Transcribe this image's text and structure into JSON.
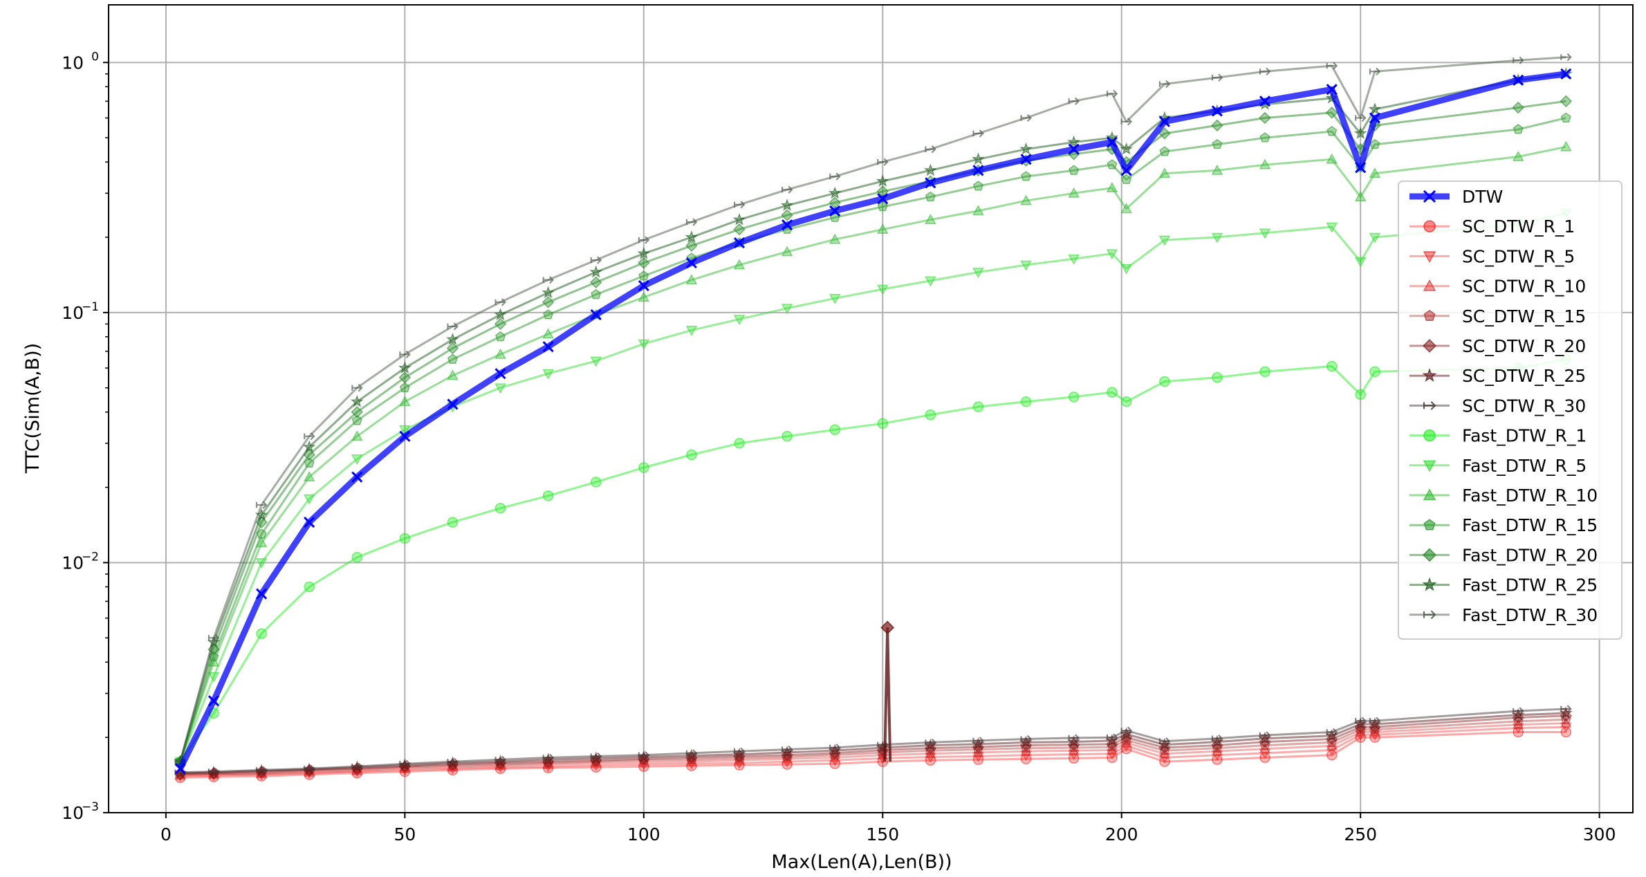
{
  "chart_data": {
    "type": "line",
    "title": "",
    "xlabel": "Max(Len(A),Len(B))",
    "ylabel": "TTC(Sim(A,B))",
    "xlim": [
      -12,
      307
    ],
    "ylim": [
      0.001,
      1.7
    ],
    "yscale": "log",
    "grid": true,
    "legend": "right",
    "x_ticks": [
      0,
      50,
      100,
      150,
      200,
      250,
      300
    ],
    "y_ticks": [
      {
        "value": 0.001,
        "base": "10",
        "exp": "−3"
      },
      {
        "value": 0.01,
        "base": "10",
        "exp": "−2"
      },
      {
        "value": 0.1,
        "base": "10",
        "exp": "−1"
      },
      {
        "value": 1,
        "base": "10",
        "exp": "0"
      }
    ],
    "x": [
      3,
      10,
      20,
      30,
      40,
      50,
      60,
      70,
      80,
      90,
      100,
      110,
      120,
      130,
      140,
      150,
      160,
      170,
      180,
      190,
      198,
      201,
      209,
      220,
      230,
      244,
      250,
      253,
      283,
      293
    ],
    "series": [
      {
        "name": "DTW",
        "color": "#0000ff",
        "marker": "x",
        "width": 9,
        "alpha": 0.75,
        "values": [
          0.0015,
          0.0028,
          0.0075,
          0.0145,
          0.022,
          0.032,
          0.043,
          0.057,
          0.073,
          0.098,
          0.128,
          0.158,
          0.19,
          0.224,
          0.255,
          0.285,
          0.33,
          0.37,
          0.41,
          0.45,
          0.48,
          0.37,
          0.58,
          0.64,
          0.7,
          0.78,
          0.38,
          0.6,
          0.85,
          0.9
        ]
      },
      {
        "name": "SC_DTW_R_1",
        "color": "#ff0000",
        "marker": "o",
        "width": 3,
        "alpha": 0.35,
        "values": [
          0.00138,
          0.00139,
          0.0014,
          0.00142,
          0.00144,
          0.00146,
          0.00148,
          0.0015,
          0.00151,
          0.00152,
          0.00153,
          0.00154,
          0.00155,
          0.00156,
          0.00157,
          0.0016,
          0.00162,
          0.00163,
          0.00164,
          0.00165,
          0.00166,
          0.0018,
          0.0016,
          0.00163,
          0.00166,
          0.0017,
          0.002,
          0.002,
          0.0021,
          0.0021
        ]
      },
      {
        "name": "SC_DTW_R_5",
        "color": "#ee1111",
        "marker": "v",
        "width": 3,
        "alpha": 0.35,
        "values": [
          0.0014,
          0.00141,
          0.00142,
          0.00144,
          0.00146,
          0.00148,
          0.0015,
          0.00152,
          0.00153,
          0.00155,
          0.00156,
          0.00157,
          0.00158,
          0.0016,
          0.00162,
          0.00165,
          0.00167,
          0.00168,
          0.0017,
          0.00171,
          0.00172,
          0.00185,
          0.00166,
          0.0017,
          0.00173,
          0.00178,
          0.00205,
          0.00205,
          0.00218,
          0.0022
        ]
      },
      {
        "name": "SC_DTW_R_10",
        "color": "#d82020",
        "marker": "^",
        "width": 3,
        "alpha": 0.35,
        "values": [
          0.00141,
          0.00142,
          0.00143,
          0.00145,
          0.00147,
          0.0015,
          0.00152,
          0.00154,
          0.00156,
          0.00158,
          0.00159,
          0.0016,
          0.00162,
          0.00164,
          0.00166,
          0.0017,
          0.00172,
          0.00174,
          0.00176,
          0.00177,
          0.00178,
          0.0019,
          0.00172,
          0.00176,
          0.0018,
          0.00185,
          0.0021,
          0.0021,
          0.00225,
          0.00228
        ]
      },
      {
        "name": "SC_DTW_R_15",
        "color": "#b02020",
        "marker": "p",
        "width": 3,
        "alpha": 0.4,
        "values": [
          0.00142,
          0.00143,
          0.00144,
          0.00147,
          0.00149,
          0.00152,
          0.00154,
          0.00156,
          0.00158,
          0.0016,
          0.00162,
          0.00163,
          0.00165,
          0.00167,
          0.0017,
          0.00174,
          0.00177,
          0.00179,
          0.00181,
          0.00182,
          0.00183,
          0.00195,
          0.00177,
          0.00181,
          0.00186,
          0.00191,
          0.00215,
          0.00215,
          0.00232,
          0.00236
        ]
      },
      {
        "name": "SC_DTW_R_20",
        "color": "#801515",
        "marker": "D",
        "width": 3,
        "alpha": 0.45,
        "values": [
          0.00143,
          0.00144,
          0.00146,
          0.00148,
          0.0015,
          0.00153,
          0.00156,
          0.00158,
          0.0016,
          0.00162,
          0.00164,
          0.00166,
          0.00168,
          0.0017,
          0.00173,
          0.00178,
          0.00181,
          0.00183,
          0.00186,
          0.00187,
          0.00188,
          0.002,
          0.00182,
          0.00186,
          0.00192,
          0.00197,
          0.0022,
          0.0022,
          0.0024,
          0.00244
        ]
      },
      {
        "name": "SC_DTW_R_25",
        "color": "#5a1a1a",
        "marker": "*",
        "width": 3,
        "alpha": 0.5,
        "values": [
          0.00144,
          0.00145,
          0.00147,
          0.00149,
          0.00152,
          0.00155,
          0.00158,
          0.0016,
          0.00163,
          0.00165,
          0.00167,
          0.00169,
          0.00171,
          0.00174,
          0.00177,
          0.00182,
          0.00186,
          0.00188,
          0.00191,
          0.00192,
          0.00194,
          0.00206,
          0.00187,
          0.00192,
          0.00198,
          0.00203,
          0.00226,
          0.00226,
          0.00246,
          0.0025
        ]
      },
      {
        "name": "SC_DTW_R_30",
        "color": "#4a3a3a",
        "marker": ">",
        "width": 3,
        "alpha": 0.5,
        "values": [
          0.00145,
          0.00146,
          0.00148,
          0.0015,
          0.00153,
          0.00157,
          0.0016,
          0.00163,
          0.00166,
          0.00168,
          0.0017,
          0.00173,
          0.00176,
          0.00179,
          0.00182,
          0.00187,
          0.00191,
          0.00194,
          0.00197,
          0.00199,
          0.002,
          0.00213,
          0.00193,
          0.00198,
          0.00204,
          0.0021,
          0.00233,
          0.00233,
          0.00255,
          0.0026
        ]
      },
      {
        "name": "Fast_DTW_R_1",
        "color": "#22ee22",
        "marker": "o",
        "width": 3,
        "alpha": 0.5,
        "values": [
          0.0016,
          0.0025,
          0.0052,
          0.008,
          0.0105,
          0.0125,
          0.0145,
          0.0165,
          0.0185,
          0.021,
          0.024,
          0.027,
          0.03,
          0.032,
          0.034,
          0.036,
          0.039,
          0.042,
          0.044,
          0.046,
          0.048,
          0.044,
          0.053,
          0.055,
          0.058,
          0.061,
          0.047,
          0.058,
          0.06,
          0.065
        ]
      },
      {
        "name": "Fast_DTW_R_5",
        "color": "#33dd33",
        "marker": "v",
        "width": 3,
        "alpha": 0.5,
        "values": [
          0.0016,
          0.0035,
          0.01,
          0.018,
          0.026,
          0.034,
          0.042,
          0.05,
          0.057,
          0.064,
          0.075,
          0.085,
          0.094,
          0.104,
          0.114,
          0.124,
          0.134,
          0.145,
          0.155,
          0.164,
          0.172,
          0.15,
          0.195,
          0.2,
          0.208,
          0.22,
          0.16,
          0.2,
          0.225,
          0.25
        ]
      },
      {
        "name": "Fast_DTW_R_10",
        "color": "#33bb33",
        "marker": "^",
        "width": 3,
        "alpha": 0.5,
        "values": [
          0.0016,
          0.004,
          0.012,
          0.022,
          0.032,
          0.044,
          0.056,
          0.068,
          0.082,
          0.098,
          0.115,
          0.135,
          0.155,
          0.175,
          0.196,
          0.215,
          0.235,
          0.255,
          0.28,
          0.3,
          0.315,
          0.26,
          0.36,
          0.37,
          0.39,
          0.41,
          0.29,
          0.36,
          0.42,
          0.46
        ]
      },
      {
        "name": "Fast_DTW_R_15",
        "color": "#2c9a2c",
        "marker": "p",
        "width": 3,
        "alpha": 0.5,
        "values": [
          0.0016,
          0.0042,
          0.013,
          0.025,
          0.037,
          0.05,
          0.065,
          0.08,
          0.098,
          0.118,
          0.14,
          0.165,
          0.19,
          0.215,
          0.24,
          0.265,
          0.29,
          0.32,
          0.35,
          0.37,
          0.39,
          0.34,
          0.44,
          0.47,
          0.5,
          0.53,
          0.38,
          0.47,
          0.54,
          0.6
        ]
      },
      {
        "name": "Fast_DTW_R_20",
        "color": "#228822",
        "marker": "D",
        "width": 3,
        "alpha": 0.5,
        "values": [
          0.0016,
          0.0045,
          0.0145,
          0.027,
          0.04,
          0.055,
          0.072,
          0.09,
          0.11,
          0.132,
          0.158,
          0.185,
          0.215,
          0.245,
          0.275,
          0.305,
          0.335,
          0.37,
          0.405,
          0.43,
          0.45,
          0.4,
          0.52,
          0.56,
          0.6,
          0.63,
          0.45,
          0.56,
          0.66,
          0.7
        ]
      },
      {
        "name": "Fast_DTW_R_25",
        "color": "#1a5a1a",
        "marker": "*",
        "width": 3,
        "alpha": 0.5,
        "values": [
          0.0016,
          0.0048,
          0.0155,
          0.029,
          0.044,
          0.06,
          0.078,
          0.098,
          0.12,
          0.145,
          0.172,
          0.2,
          0.235,
          0.268,
          0.3,
          0.335,
          0.37,
          0.41,
          0.45,
          0.48,
          0.5,
          0.45,
          0.6,
          0.64,
          0.68,
          0.72,
          0.52,
          0.65,
          0.85,
          0.9
        ]
      },
      {
        "name": "Fast_DTW_R_30",
        "color": "#4a5a4a",
        "marker": ">",
        "width": 3,
        "alpha": 0.5,
        "values": [
          0.0016,
          0.005,
          0.017,
          0.032,
          0.05,
          0.068,
          0.088,
          0.11,
          0.135,
          0.162,
          0.195,
          0.23,
          0.27,
          0.31,
          0.35,
          0.4,
          0.45,
          0.52,
          0.6,
          0.7,
          0.75,
          0.58,
          0.82,
          0.87,
          0.92,
          0.97,
          0.6,
          0.92,
          1.02,
          1.05
        ]
      }
    ],
    "annotations": [
      {
        "series": "SC_DTW_R_25",
        "x": 151,
        "y": 0.0055
      }
    ]
  }
}
